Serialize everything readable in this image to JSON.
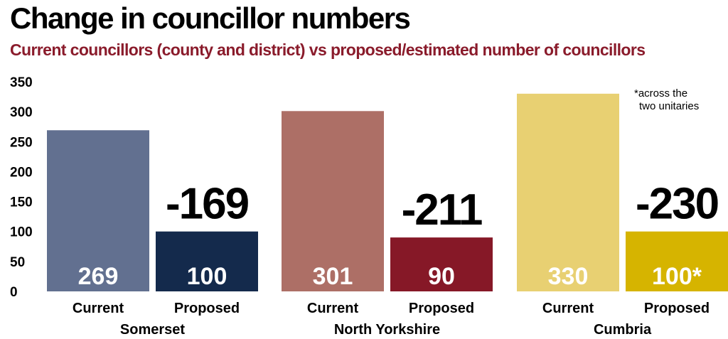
{
  "title": "Change in councillor numbers",
  "subtitle": "Current councillors (county and district) vs proposed/estimated number of councillors",
  "chart_data": {
    "type": "bar",
    "ylim": [
      0,
      350
    ],
    "yticks": [
      0,
      50,
      100,
      150,
      200,
      250,
      300,
      350
    ],
    "grid": false,
    "groups": [
      {
        "name": "Somerset",
        "change_label": "-169",
        "bars": [
          {
            "category": "Current",
            "value": 269,
            "label": "269",
            "color": "#627090"
          },
          {
            "category": "Proposed",
            "value": 100,
            "label": "100",
            "color": "#142a4c"
          }
        ]
      },
      {
        "name": "North Yorkshire",
        "change_label": "-211",
        "bars": [
          {
            "category": "Current",
            "value": 301,
            "label": "301",
            "color": "#ad6f66"
          },
          {
            "category": "Proposed",
            "value": 90,
            "label": "90",
            "color": "#861827"
          }
        ]
      },
      {
        "name": "Cumbria",
        "change_label": "-230",
        "bars": [
          {
            "category": "Current",
            "value": 330,
            "label": "330",
            "color": "#e8d072"
          },
          {
            "category": "Proposed",
            "value": 100,
            "label": "100*",
            "color": "#d6b400"
          }
        ]
      }
    ],
    "annotation": [
      "*across the",
      "two unitaries"
    ]
  }
}
